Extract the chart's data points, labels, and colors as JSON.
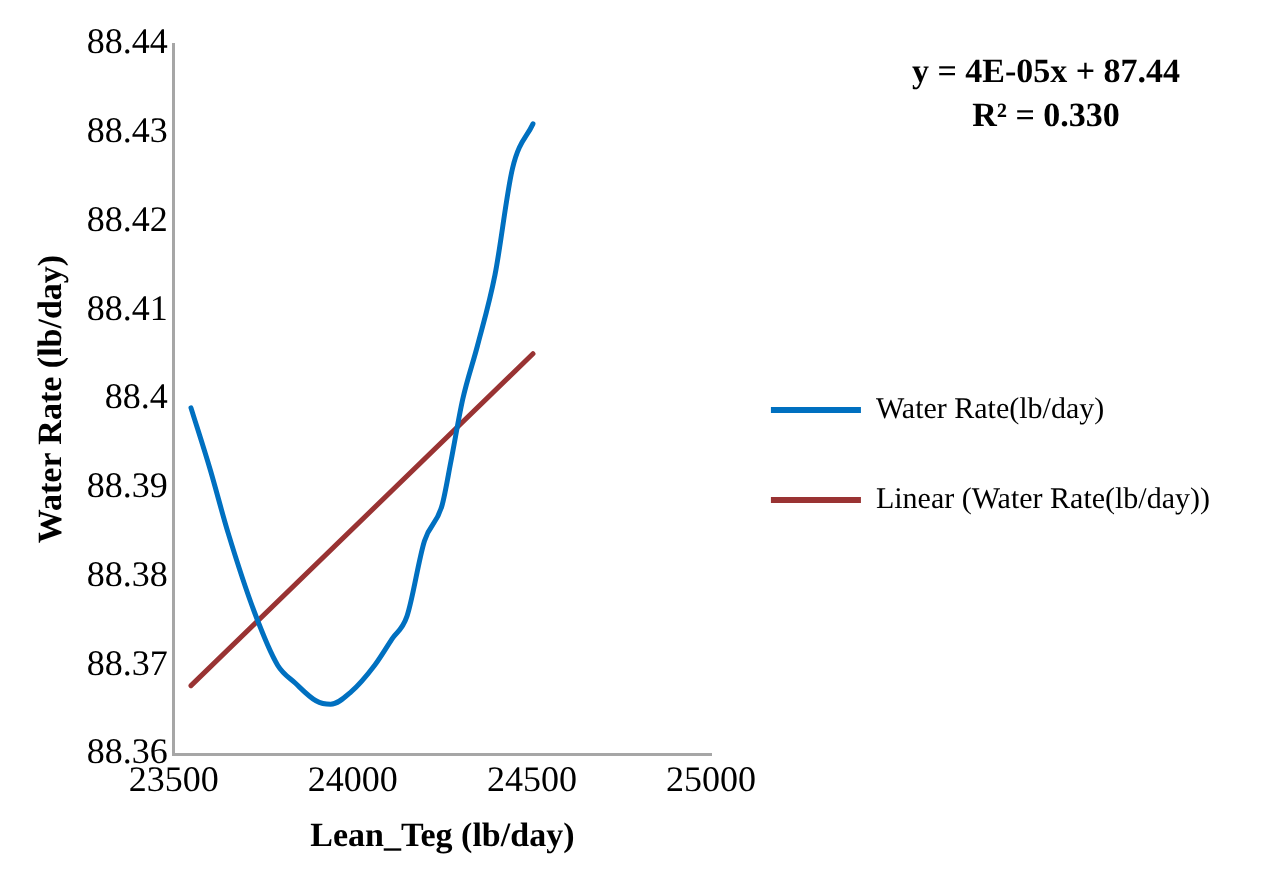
{
  "chart_data": {
    "type": "line",
    "xlabel": "Lean_Teg (lb/day)",
    "ylabel": "Water Rate (lb/day)",
    "annotations": [
      "y = 4E-05x + 87.44",
      "R² = 0.330"
    ],
    "series": [
      {
        "name": "Water Rate(lb/day)",
        "color": "#0070c0",
        "x": [
          23548,
          23602,
          23651,
          23725,
          23790,
          23839,
          23897,
          23938,
          23995,
          24061,
          24110,
          24151,
          24200,
          24249,
          24274,
          24307,
          24348,
          24397,
          24446,
          24503
        ],
        "values": [
          88.399,
          88.392,
          88.385,
          88.376,
          88.37,
          88.368,
          88.366,
          88.3656,
          88.367,
          88.37,
          88.373,
          88.3755,
          88.384,
          88.388,
          88.393,
          88.4,
          88.406,
          88.414,
          88.426,
          88.431
        ]
      },
      {
        "name": "Linear (Water Rate(lb/day))",
        "type": "line",
        "color": "#993333",
        "x": [
          23548,
          24503
        ],
        "values": [
          88.3677,
          88.4051
        ]
      }
    ],
    "xlim": [
      23500,
      25000
    ],
    "xticks": [
      23500,
      24000,
      24500,
      25000
    ],
    "ylim": [
      88.36,
      88.44
    ],
    "yticks": [
      88.36,
      88.37,
      88.38,
      88.39,
      88.4,
      88.41,
      88.42,
      88.43,
      88.44
    ],
    "grid": false,
    "legend": "right",
    "marker": "none",
    "line_style": "solid"
  }
}
